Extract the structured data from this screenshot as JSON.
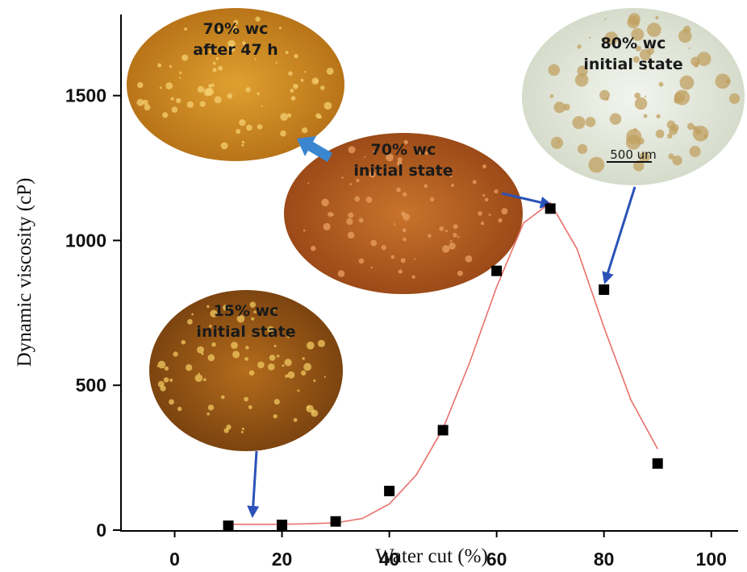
{
  "chart_data": {
    "type": "scatter",
    "x_label": "Water cut (%)",
    "y_label": "Dynamic viscosity (cP)",
    "xlim": [
      -10,
      105
    ],
    "ylim": [
      0,
      1780
    ],
    "xticks": [
      0,
      20,
      40,
      60,
      80,
      100
    ],
    "yticks": [
      0,
      500,
      1000,
      1500
    ],
    "series": [
      {
        "color": "#000000",
        "x": [
          10,
          20,
          30,
          40,
          50,
          60,
          70,
          80,
          90
        ],
        "values": [
          15,
          18,
          30,
          135,
          345,
          895,
          1110,
          830,
          230
        ]
      },
      {
        "color": "#e8706a",
        "x": [
          10,
          15,
          20,
          25,
          30,
          35,
          40,
          45,
          50,
          55,
          60,
          65,
          70,
          75,
          80,
          85,
          90
        ],
        "values": [
          20,
          20,
          20,
          22,
          25,
          40,
          90,
          190,
          350,
          580,
          840,
          1060,
          1130,
          970,
          700,
          450,
          280
        ]
      }
    ],
    "insets": [
      {
        "lines": [
          "70% wc",
          "after 47 h"
        ]
      },
      {
        "lines": [
          "70% wc",
          "initial state"
        ]
      },
      {
        "lines": [
          "80% wc",
          "initial state"
        ],
        "scale_label": "500 um"
      },
      {
        "lines": [
          "15% wc",
          "initial state"
        ]
      }
    ]
  }
}
